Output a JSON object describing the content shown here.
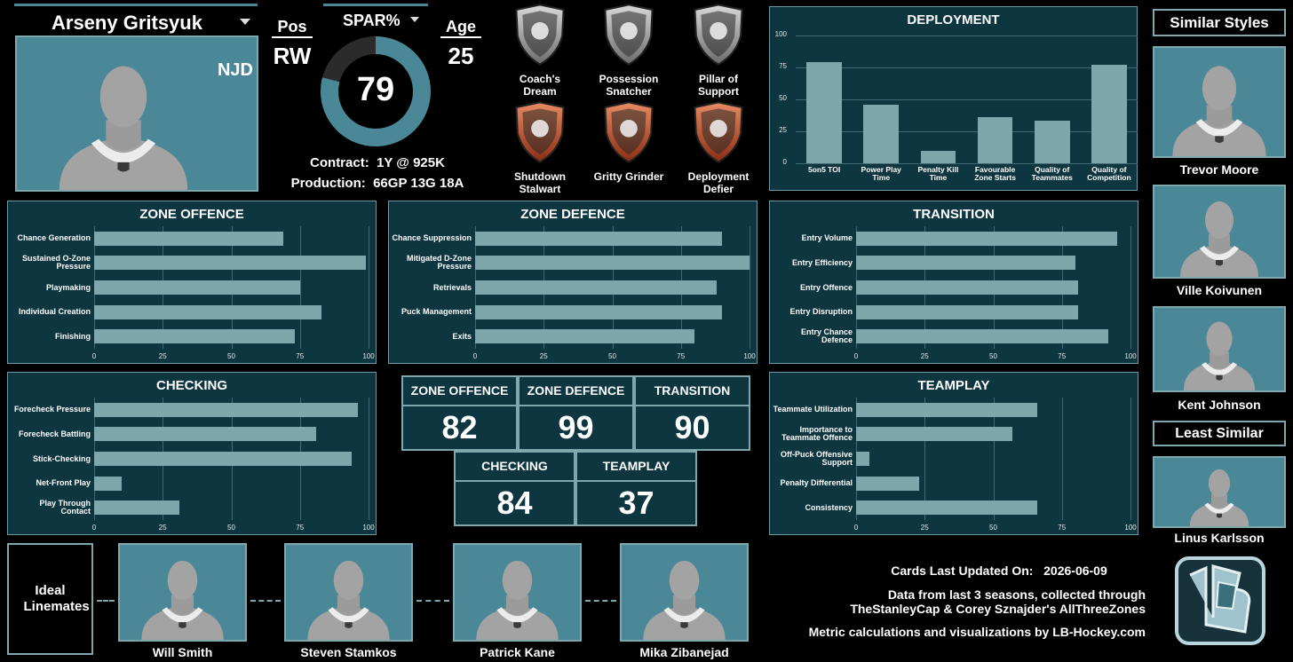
{
  "player": {
    "name": "Arseny Gritsyuk",
    "team": "NJD",
    "pos_label": "Pos",
    "pos": "RW",
    "spar_label": "SPAR%",
    "spar": 79,
    "age_label": "Age",
    "age": 25,
    "contract_label": "Contract:",
    "contract": "1Y @ 925K",
    "production_label": "Production:",
    "production": "66GP 13G 18A"
  },
  "badges": [
    {
      "lines": [
        "Coach's",
        "Dream"
      ],
      "tier": "silver"
    },
    {
      "lines": [
        "Possession",
        "Snatcher"
      ],
      "tier": "silver"
    },
    {
      "lines": [
        "Pillar of",
        "Support"
      ],
      "tier": "silver"
    },
    {
      "lines": [
        "Shutdown",
        "Stalwart"
      ],
      "tier": "copper"
    },
    {
      "lines": [
        "Gritty Grinder"
      ],
      "tier": "copper"
    },
    {
      "lines": [
        "Deployment",
        "Defier"
      ],
      "tier": "copper"
    }
  ],
  "chart_data": [
    {
      "type": "bar",
      "title": "DEPLOYMENT",
      "categories": [
        "5on5 TOI",
        "Power Play Time",
        "Penalty Kill Time",
        "Favourable Zone Starts",
        "Quality of Teammates",
        "Quality of Competition"
      ],
      "values": [
        79,
        46,
        10,
        36,
        33,
        77
      ],
      "color": "#7ea7ad",
      "ylim": [
        0,
        100
      ],
      "yticks": [
        0,
        25,
        50,
        75,
        100
      ],
      "grid": true
    },
    {
      "type": "hbar",
      "title": "ZONE OFFENCE",
      "categories": [
        "Chance Generation",
        "Sustained O-Zone Pressure",
        "Playmaking",
        "Individual Creation",
        "Finishing"
      ],
      "values": [
        69,
        99,
        75,
        83,
        73
      ],
      "color": "#7ea7ad",
      "xlim": [
        0,
        100
      ],
      "xticks": [
        0,
        25,
        50,
        75,
        100
      ],
      "grid": true
    },
    {
      "type": "hbar",
      "title": "ZONE DEFENCE",
      "categories": [
        "Chance Suppression",
        "Mitigated D-Zone Pressure",
        "Retrievals",
        "Puck Management",
        "Exits"
      ],
      "values": [
        90,
        100,
        88,
        90,
        80
      ],
      "color": "#7ea7ad",
      "xlim": [
        0,
        100
      ],
      "xticks": [
        0,
        25,
        50,
        75,
        100
      ],
      "grid": true
    },
    {
      "type": "hbar",
      "title": "TRANSITION",
      "categories": [
        "Entry Volume",
        "Entry Efficiency",
        "Entry Offence",
        "Entry Disruption",
        "Entry Chance Defence"
      ],
      "values": [
        95,
        80,
        81,
        81,
        92
      ],
      "color": "#7ea7ad",
      "xlim": [
        0,
        100
      ],
      "xticks": [
        0,
        25,
        50,
        75,
        100
      ],
      "grid": true
    },
    {
      "type": "hbar",
      "title": "CHECKING",
      "categories": [
        "Forecheck Pressure",
        "Forecheck Battling",
        "Stick-Checking",
        "Net-Front Play",
        "Play Through Contact"
      ],
      "values": [
        96,
        81,
        94,
        10,
        31
      ],
      "color": "#7ea7ad",
      "xlim": [
        0,
        100
      ],
      "xticks": [
        0,
        25,
        50,
        75,
        100
      ],
      "grid": true
    },
    {
      "type": "hbar",
      "title": "TEAMPLAY",
      "categories": [
        "Teammate Utilization",
        "Importance to Teammate Offence",
        "Off-Puck Offensive Support",
        "Penalty Differential",
        "Consistency"
      ],
      "values": [
        66,
        57,
        5,
        23,
        66
      ],
      "color": "#7ea7ad",
      "xlim": [
        0,
        100
      ],
      "xticks": [
        0,
        25,
        50,
        75,
        100
      ],
      "grid": true
    }
  ],
  "scores": [
    {
      "label": "ZONE OFFENCE",
      "value": 82
    },
    {
      "label": "ZONE DEFENCE",
      "value": 99
    },
    {
      "label": "TRANSITION",
      "value": 90
    },
    {
      "label": "CHECKING",
      "value": 84
    },
    {
      "label": "TEAMPLAY",
      "value": 37
    }
  ],
  "similar": {
    "title": "Similar Styles",
    "players": [
      "Trevor Moore",
      "Ville Koivunen",
      "Kent Johnson"
    ],
    "least_title": "Least Similar",
    "least": [
      "Linus Karlsson"
    ]
  },
  "linemates": {
    "title": "Ideal Linemates",
    "players": [
      "Will Smith",
      "Steven Stamkos",
      "Patrick Kane",
      "Mika Zibanejad"
    ]
  },
  "footer": {
    "updated_label": "Cards Last Updated On:",
    "updated": "2026-06-09",
    "source": [
      "Data from last 3 seasons, collected through",
      "TheStanleyCap & Corey Sznajder's AllThreeZones"
    ],
    "credit": "Metric calculations and visualizations by LB-Hockey.com"
  }
}
